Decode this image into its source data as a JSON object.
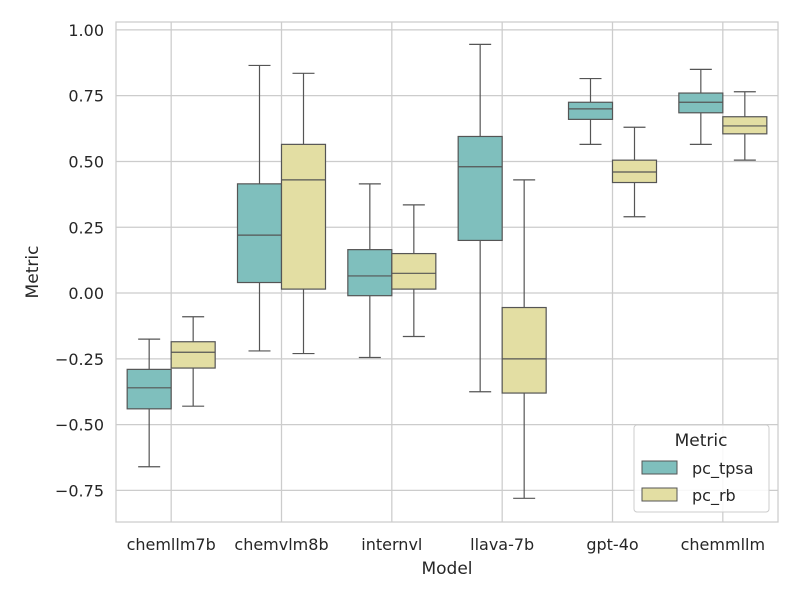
{
  "chart_data": {
    "type": "box",
    "xlabel": "Model",
    "ylabel": "Metric",
    "categories": [
      "chemllm7b",
      "chemvlm8b",
      "internvl",
      "llava-7b",
      "gpt-4o",
      "chemmllm"
    ],
    "ylim": [
      -0.87,
      1.03
    ],
    "yticks": [
      1.0,
      0.75,
      0.5,
      0.25,
      0.0,
      -0.25,
      -0.5,
      -0.75
    ],
    "ytick_labels": [
      "1.00",
      "0.75",
      "0.50",
      "0.25",
      "0.00",
      "−0.25",
      "−0.50",
      "−0.75"
    ],
    "grid": true,
    "legend": {
      "title": "Metric",
      "position": "lower right"
    },
    "series": [
      {
        "name": "pc_tpsa",
        "color": "#7fbfbd",
        "boxes": [
          {
            "whisker_low": -0.66,
            "q1": -0.44,
            "median": -0.36,
            "q3": -0.29,
            "whisker_high": -0.175
          },
          {
            "whisker_low": -0.22,
            "q1": 0.04,
            "median": 0.22,
            "q3": 0.415,
            "whisker_high": 0.865
          },
          {
            "whisker_low": -0.245,
            "q1": -0.01,
            "median": 0.065,
            "q3": 0.165,
            "whisker_high": 0.415
          },
          {
            "whisker_low": -0.375,
            "q1": 0.2,
            "median": 0.48,
            "q3": 0.595,
            "whisker_high": 0.945
          },
          {
            "whisker_low": 0.565,
            "q1": 0.66,
            "median": 0.7,
            "q3": 0.725,
            "whisker_high": 0.815
          },
          {
            "whisker_low": 0.565,
            "q1": 0.685,
            "median": 0.725,
            "q3": 0.76,
            "whisker_high": 0.85
          }
        ]
      },
      {
        "name": "pc_rb",
        "color": "#e3dea3",
        "boxes": [
          {
            "whisker_low": -0.43,
            "q1": -0.285,
            "median": -0.225,
            "q3": -0.185,
            "whisker_high": -0.09
          },
          {
            "whisker_low": -0.23,
            "q1": 0.015,
            "median": 0.43,
            "q3": 0.565,
            "whisker_high": 0.835
          },
          {
            "whisker_low": -0.165,
            "q1": 0.015,
            "median": 0.075,
            "q3": 0.15,
            "whisker_high": 0.335
          },
          {
            "whisker_low": -0.78,
            "q1": -0.38,
            "median": -0.25,
            "q3": -0.055,
            "whisker_high": 0.43
          },
          {
            "whisker_low": 0.29,
            "q1": 0.42,
            "median": 0.46,
            "q3": 0.505,
            "whisker_high": 0.63
          },
          {
            "whisker_low": 0.505,
            "q1": 0.605,
            "median": 0.635,
            "q3": 0.67,
            "whisker_high": 0.765
          }
        ]
      }
    ]
  }
}
